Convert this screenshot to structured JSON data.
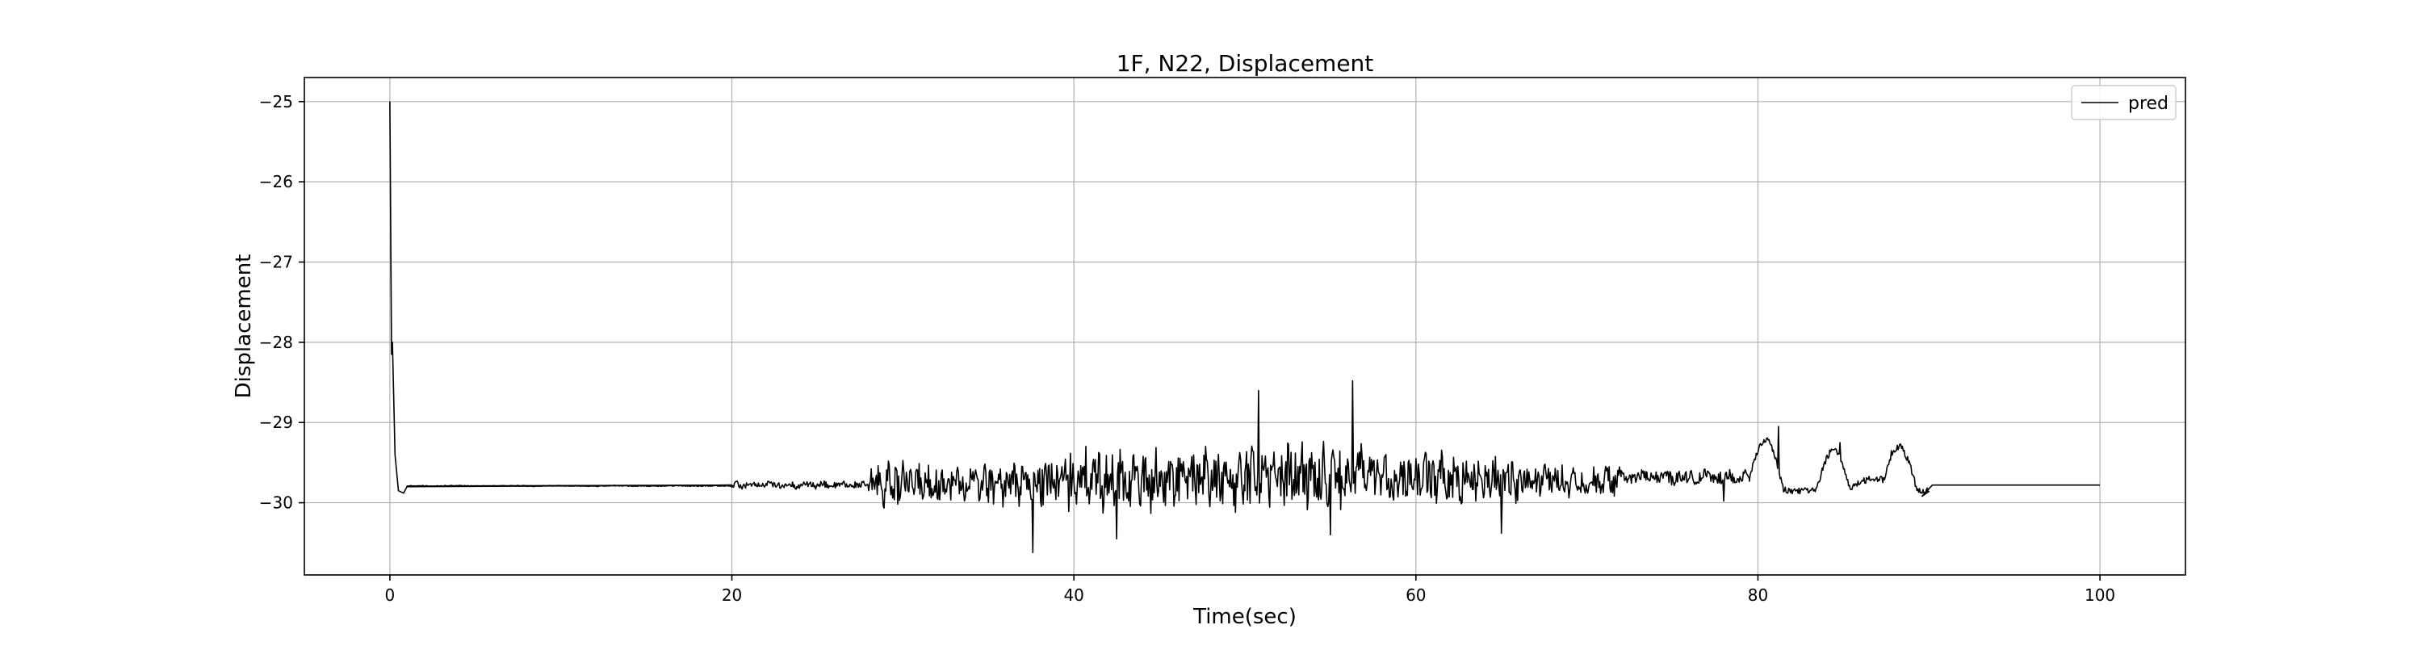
{
  "chart_data": {
    "type": "line",
    "title": "1F, N22, Displacement",
    "xlabel": "Time(sec)",
    "ylabel": "Displacement",
    "xlim": [
      -5,
      105
    ],
    "ylim": [
      -30.9,
      -24.7
    ],
    "xticks": [
      0,
      20,
      40,
      60,
      80,
      100
    ],
    "yticks": [
      -25,
      -26,
      -27,
      -28,
      -29,
      -30
    ],
    "xtick_labels": [
      "0",
      "20",
      "40",
      "60",
      "80",
      "100"
    ],
    "ytick_labels": [
      "−25",
      "−26",
      "−27",
      "−28",
      "−29",
      "−30"
    ],
    "grid": true,
    "legend_position": "top-right",
    "series": [
      {
        "name": "pred",
        "color": "#000000",
        "key_points": [
          [
            0.0,
            -25.0
          ],
          [
            0.1,
            -28.15
          ],
          [
            0.15,
            -28.0
          ],
          [
            0.3,
            -29.4
          ],
          [
            0.5,
            -29.85
          ],
          [
            0.8,
            -29.88
          ],
          [
            1.0,
            -29.8
          ],
          [
            20.0,
            -29.78
          ],
          [
            22.0,
            -29.75
          ],
          [
            37.6,
            -30.62
          ],
          [
            42.5,
            -30.45
          ],
          [
            50.8,
            -28.6
          ],
          [
            56.3,
            -28.48
          ],
          [
            55.0,
            -30.4
          ],
          [
            65.0,
            -30.38
          ],
          [
            78.0,
            -29.98
          ],
          [
            80.0,
            -29.6
          ],
          [
            81.2,
            -29.05
          ],
          [
            82.2,
            -29.85
          ],
          [
            84.8,
            -29.25
          ],
          [
            87.8,
            -29.35
          ],
          [
            89.5,
            -29.95
          ],
          [
            90.2,
            -29.78
          ],
          [
            100.0,
            -29.78
          ]
        ],
        "segments": [
          {
            "t_start": 1.0,
            "t_end": 20.0,
            "base": -29.79,
            "amp": 0.01,
            "freq": 2.0
          },
          {
            "t_start": 20.0,
            "t_end": 28.0,
            "base": -29.78,
            "amp": 0.07,
            "freq": 6.0
          },
          {
            "t_start": 28.0,
            "t_end": 38.0,
            "base": -29.76,
            "amp": 0.38,
            "freq": 8.0
          },
          {
            "t_start": 38.0,
            "t_end": 50.0,
            "base": -29.72,
            "amp": 0.55,
            "freq": 9.0
          },
          {
            "t_start": 50.0,
            "t_end": 57.0,
            "base": -29.65,
            "amp": 0.6,
            "freq": 9.0
          },
          {
            "t_start": 57.0,
            "t_end": 66.0,
            "base": -29.7,
            "amp": 0.45,
            "freq": 8.0
          },
          {
            "t_start": 66.0,
            "t_end": 72.0,
            "base": -29.72,
            "amp": 0.3,
            "freq": 7.0
          },
          {
            "t_start": 72.0,
            "t_end": 79.5,
            "base": -29.68,
            "amp": 0.14,
            "freq": 5.0
          },
          {
            "t_start": 79.5,
            "t_end": 90.0,
            "base": -29.55,
            "amp": 0.15,
            "freq": 1.2
          }
        ]
      }
    ]
  }
}
